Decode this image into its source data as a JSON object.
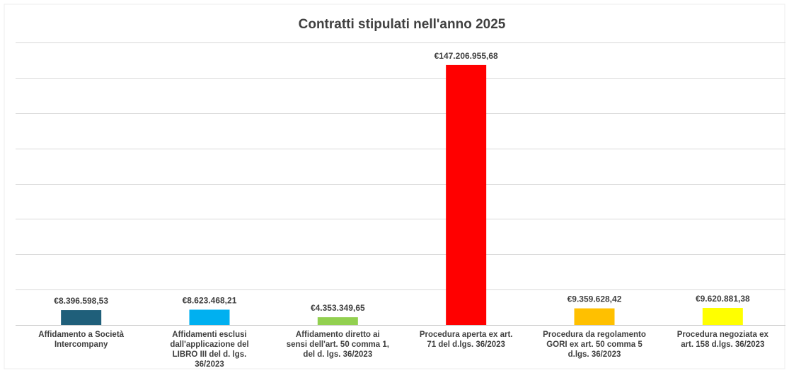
{
  "chart_data": {
    "type": "bar",
    "title": "Contratti stipulati nell'anno 2025",
    "xlabel": "",
    "ylabel": "",
    "ylim": [
      0,
      160000000
    ],
    "grid": true,
    "legend": "none",
    "categories": [
      "Affidamento a Società Intercompany",
      "Affidamenti esclusi dall'applicazione del LIBRO III del d. lgs. 36/2023",
      "Affidamento diretto ai sensi dell'art. 50 comma 1, del d. lgs. 36/2023",
      "Procedura aperta  ex art. 71 del d.lgs. 36/2023",
      "Procedura da regolamento GORI ex art. 50 comma 5 d.lgs. 36/2023",
      "Procedura negoziata ex art. 158 d.lgs. 36/2023"
    ],
    "category_lines": [
      [
        "Affidamento a Società",
        "Intercompany"
      ],
      [
        "Affidamenti esclusi",
        "dall'applicazione del",
        "LIBRO III del d. lgs.",
        "36/2023"
      ],
      [
        "Affidamento diretto ai",
        "sensi dell'art. 50 comma 1,",
        "del d. lgs. 36/2023"
      ],
      [
        "Procedura aperta  ex art.",
        "71 del d.lgs. 36/2023"
      ],
      [
        "Procedura da regolamento",
        "GORI ex art. 50 comma 5",
        "d.lgs. 36/2023"
      ],
      [
        "Procedura negoziata ex",
        "art. 158 d.lgs. 36/2023"
      ]
    ],
    "values": [
      8396598.53,
      8623468.21,
      4353349.65,
      147206955.68,
      9359628.42,
      9620881.38
    ],
    "data_labels": [
      "€8.396.598,53",
      "€8.623.468,21",
      "€4.353.349,65",
      "€147.206.955,68",
      "€9.359.628,42",
      "€9.620.881,38"
    ],
    "colors": [
      "#1f5f7a",
      "#00b0f0",
      "#92d050",
      "#ff0000",
      "#ffc000",
      "#ffff00"
    ]
  }
}
